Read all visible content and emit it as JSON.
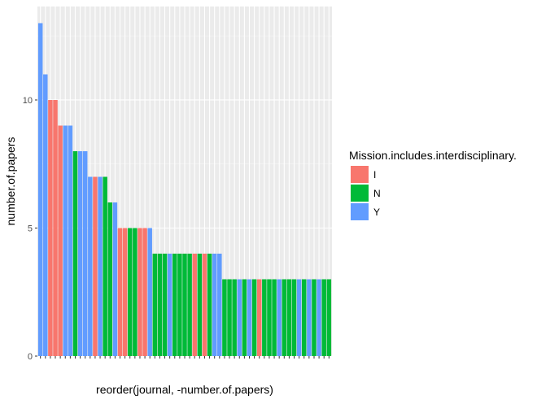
{
  "chart_data": {
    "type": "bar",
    "xlabel": "reorder(journal, -number.of.papers)",
    "ylabel": "number.of.papers",
    "ylim": [
      0,
      13.65
    ],
    "y_ticks": [
      0,
      5,
      10
    ],
    "y_tick_labels": [
      "0",
      "5",
      "10"
    ],
    "grid": true,
    "legend": {
      "title": "Mission.includes.interdisciplinary.",
      "placement": "right",
      "entries": [
        {
          "key": "I",
          "label": "I",
          "color": "#F8766D"
        },
        {
          "key": "N",
          "label": "N",
          "color": "#00BA38"
        },
        {
          "key": "Y",
          "label": "Y",
          "color": "#619CFF"
        }
      ]
    },
    "bars": [
      {
        "value": 13,
        "group": "Y"
      },
      {
        "value": 11,
        "group": "Y"
      },
      {
        "value": 10,
        "group": "I"
      },
      {
        "value": 10,
        "group": "I"
      },
      {
        "value": 9,
        "group": "I"
      },
      {
        "value": 9,
        "group": "Y"
      },
      {
        "value": 9,
        "group": "Y"
      },
      {
        "value": 8,
        "group": "N"
      },
      {
        "value": 8,
        "group": "Y"
      },
      {
        "value": 8,
        "group": "Y"
      },
      {
        "value": 7,
        "group": "Y"
      },
      {
        "value": 7,
        "group": "I"
      },
      {
        "value": 7,
        "group": "Y"
      },
      {
        "value": 7,
        "group": "N"
      },
      {
        "value": 6,
        "group": "N"
      },
      {
        "value": 6,
        "group": "Y"
      },
      {
        "value": 5,
        "group": "I"
      },
      {
        "value": 5,
        "group": "I"
      },
      {
        "value": 5,
        "group": "N"
      },
      {
        "value": 5,
        "group": "N"
      },
      {
        "value": 5,
        "group": "I"
      },
      {
        "value": 5,
        "group": "I"
      },
      {
        "value": 5,
        "group": "Y"
      },
      {
        "value": 4,
        "group": "N"
      },
      {
        "value": 4,
        "group": "N"
      },
      {
        "value": 4,
        "group": "N"
      },
      {
        "value": 4,
        "group": "Y"
      },
      {
        "value": 4,
        "group": "N"
      },
      {
        "value": 4,
        "group": "N"
      },
      {
        "value": 4,
        "group": "N"
      },
      {
        "value": 4,
        "group": "N"
      },
      {
        "value": 4,
        "group": "I"
      },
      {
        "value": 4,
        "group": "N"
      },
      {
        "value": 4,
        "group": "I"
      },
      {
        "value": 4,
        "group": "N"
      },
      {
        "value": 4,
        "group": "Y"
      },
      {
        "value": 4,
        "group": "Y"
      },
      {
        "value": 3,
        "group": "N"
      },
      {
        "value": 3,
        "group": "N"
      },
      {
        "value": 3,
        "group": "N"
      },
      {
        "value": 3,
        "group": "Y"
      },
      {
        "value": 3,
        "group": "N"
      },
      {
        "value": 3,
        "group": "Y"
      },
      {
        "value": 3,
        "group": "N"
      },
      {
        "value": 3,
        "group": "I"
      },
      {
        "value": 3,
        "group": "N"
      },
      {
        "value": 3,
        "group": "N"
      },
      {
        "value": 3,
        "group": "N"
      },
      {
        "value": 3,
        "group": "Y"
      },
      {
        "value": 3,
        "group": "N"
      },
      {
        "value": 3,
        "group": "N"
      },
      {
        "value": 3,
        "group": "N"
      },
      {
        "value": 3,
        "group": "Y"
      },
      {
        "value": 3,
        "group": "N"
      },
      {
        "value": 3,
        "group": "Y"
      },
      {
        "value": 3,
        "group": "N"
      },
      {
        "value": 3,
        "group": "Y"
      },
      {
        "value": 3,
        "group": "N"
      },
      {
        "value": 3,
        "group": "N"
      }
    ]
  }
}
